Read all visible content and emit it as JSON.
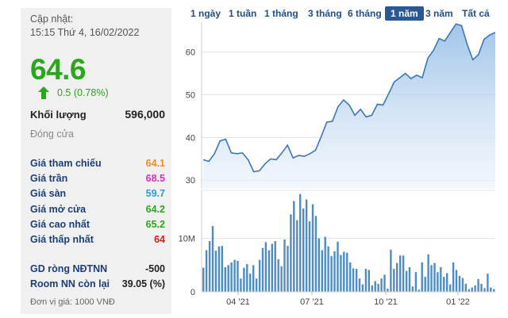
{
  "info": {
    "updated_label": "Cập nhật:",
    "updated_time": "15:15 Thứ 4, 16/02/2022",
    "price": "64.6",
    "change": "0.5 (0.78%)",
    "volume_label": "Khối lượng",
    "volume_value": "596,000",
    "closed_label": "Đóng cửa",
    "rows": [
      {
        "label": "Giá tham chiếu",
        "value": "64.1",
        "color": "#f08c1a"
      },
      {
        "label": "Giá trần",
        "value": "68.5",
        "color": "#d72fbe"
      },
      {
        "label": "Giá sàn",
        "value": "59.7",
        "color": "#2f9fd6"
      },
      {
        "label": "Giá mở cửa",
        "value": "64.2",
        "color": "#2aa81c"
      },
      {
        "label": "Giá cao nhất",
        "value": "65.2",
        "color": "#2aa81c"
      },
      {
        "label": "Giá thấp nhất",
        "value": "64",
        "color": "#d0201a"
      }
    ],
    "foreign_net_label": "GD ròng NĐTNN",
    "foreign_net_value": "-500",
    "foreign_room_label": "Room NN còn lại",
    "foreign_room_value": "39.05 (%)",
    "unit_note": "Đơn vị giá: 1000 VNĐ",
    "up_color": "#2aa81c"
  },
  "tabs": [
    "1 ngày",
    "1 tuần",
    "1 tháng",
    "3 tháng",
    "6 tháng",
    "1 năm",
    "3 năm",
    "Tất cả"
  ],
  "active_tab": "1 năm",
  "chart_data": [
    {
      "type": "area",
      "name": "price",
      "ylim": [
        28,
        67
      ],
      "yticks": [
        30,
        40,
        50,
        60
      ],
      "grid": true,
      "color": "#3a77b8",
      "values": [
        34.8,
        34.4,
        36.2,
        39.2,
        39.6,
        36.4,
        36.2,
        36.4,
        34.8,
        32.0,
        32.2,
        33.8,
        35.0,
        34.8,
        36.4,
        38.2,
        35.2,
        35.8,
        35.6,
        36.2,
        37.0,
        40.2,
        43.6,
        43.8,
        47.2,
        48.8,
        47.6,
        45.2,
        46.6,
        44.8,
        45.2,
        47.8,
        47.6,
        50.2,
        53.0,
        54.0,
        55.0,
        53.8,
        54.6,
        54.0,
        58.6,
        60.4,
        63.2,
        62.6,
        64.6,
        66.6,
        66.2,
        61.8,
        58.2,
        59.4,
        63.0,
        64.0,
        64.6
      ]
    },
    {
      "type": "bar",
      "name": "volume",
      "ylim": [
        0,
        19
      ],
      "yticks": [
        0,
        10
      ],
      "ytick_labels": [
        "0",
        "10M"
      ],
      "color": "#4e8cc4",
      "xticks": [
        "04 '21",
        "07 '21",
        "10 '21",
        "01 '22"
      ],
      "values": [
        4.5,
        7.8,
        9.5,
        12.3,
        7.7,
        8.5,
        8.6,
        4.6,
        5.0,
        5.5,
        6.0,
        5.8,
        2.5,
        4.5,
        5.2,
        3.4,
        5.0,
        2.5,
        6.0,
        8.2,
        9.3,
        7.8,
        9.0,
        9.5,
        6.1,
        4.8,
        9.8,
        8.6,
        14.5,
        17.0,
        13.4,
        18.3,
        15.6,
        17.3,
        13.2,
        16.4,
        14.2,
        10.0,
        7.8,
        10.3,
        8.5,
        6.7,
        7.6,
        9.4,
        6.9,
        7.5,
        7.3,
        5.5,
        4.4,
        4.3,
        2.5,
        1.4,
        4.3,
        4.1,
        1.2,
        2.0,
        1.5,
        2.5,
        3.2,
        0.6,
        7.9,
        4.3,
        5.4,
        6.8,
        6.8,
        3.9,
        4.6,
        1.0,
        3.7,
        0.4,
        5.5,
        2.8,
        7.0,
        5.0,
        5.4,
        3.7,
        4.6,
        2.8,
        3.5,
        1.4,
        5.5,
        4.1,
        3.0,
        2.6,
        1.5,
        0.5,
        0.8,
        1.2,
        2.4,
        1.5,
        0.7,
        3.4,
        0.8,
        0.5
      ]
    }
  ]
}
